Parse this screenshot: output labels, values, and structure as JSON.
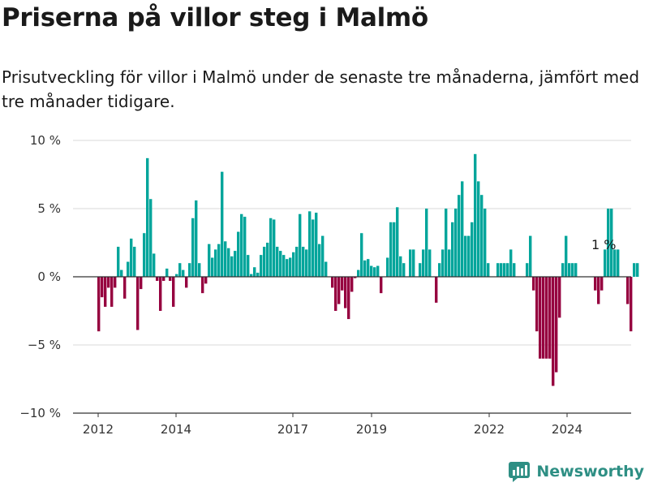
{
  "header": {
    "title": "Priserna på villor steg i Malmö",
    "subtitle": "Prisutveckling för villor i Malmö under de senaste tre månaderna, jämfört med tre månader tidigare."
  },
  "brand": {
    "name": "Newsworthy",
    "icon": "newsworthy-logo-icon"
  },
  "colors": {
    "positive": "#00a59b",
    "negative": "#96003f",
    "grid": "#d9d9d9",
    "zero_line": "#333333"
  },
  "chart_data": {
    "type": "bar",
    "x_unit": "month",
    "ylim": [
      -10,
      10
    ],
    "yticks": [
      10,
      5,
      0,
      -5,
      -10
    ],
    "ytick_labels": [
      "10 %",
      "5 %",
      "0 %",
      "−5 %",
      "−10 %"
    ],
    "xtick_labels": [
      "2012",
      "2014",
      "2017",
      "2019",
      "2022",
      "2024"
    ],
    "grid": true,
    "annotation": {
      "text": "1 %"
    },
    "series": [
      {
        "values": [
          -4,
          -1.5,
          -2.2,
          -0.8,
          -2.2,
          -0.8,
          2.2,
          0.5,
          -1.6,
          1.1,
          2.8,
          2.2,
          -3.9,
          -0.9,
          3.2,
          8.7,
          5.7,
          1.7,
          -0.3,
          -2.5,
          -0.3,
          0.6,
          -0.3,
          -2.2,
          0.2,
          1.0,
          0.5,
          -0.8,
          1.0,
          4.3,
          5.6,
          1.0,
          -1.2,
          -0.5,
          2.4,
          1.4,
          2.0,
          2.4,
          7.7,
          2.6,
          2.1,
          1.5,
          1.9,
          3.3,
          4.6,
          4.4,
          1.6,
          0.2,
          0.7,
          0.3,
          1.6,
          2.2,
          2.5,
          4.3,
          4.2,
          2.2,
          1.9,
          1.6,
          1.3,
          1.4,
          1.8,
          2.2,
          4.6,
          2.2,
          2.0,
          4.8,
          4.2,
          4.7,
          2.4,
          3.0,
          1.1,
          0.0,
          -0.8,
          -2.5,
          -2.0,
          -1.0,
          -2.3,
          -3.1,
          -1.1,
          -0.1,
          0.5,
          3.2,
          1.2,
          1.3,
          0.8,
          0.7,
          0.8,
          -1.2,
          0.0,
          1.4,
          4.0,
          4.0,
          5.1,
          1.5,
          1.0,
          0.0,
          2.0,
          2.0,
          0.0,
          1.0,
          2.0,
          5.0,
          2.0,
          0.0,
          -1.9,
          1.0,
          2.0,
          5.0,
          2.0,
          4.0,
          5.0,
          6.0,
          7.0,
          3.0,
          3.0,
          4.0,
          9.0,
          7.0,
          6.0,
          5.0,
          1.0,
          0.0,
          0.0,
          1.0,
          1.0,
          1.0,
          1.0,
          2.0,
          1.0,
          0.0,
          0.0,
          0.0,
          1.0,
          3.0,
          -1.0,
          -4.0,
          -6.0,
          -6.0,
          -6.0,
          -6.0,
          -8.0,
          -7.0,
          -3.0,
          1.0,
          3.0,
          1.0,
          1.0,
          1.0,
          0.0,
          0.0,
          0.0,
          0.0,
          0.0,
          -1.0,
          -2.0,
          -1.0,
          2.0,
          5.0,
          5.0,
          2.0,
          2.0,
          0.0,
          0.0,
          -2.0,
          -4.0,
          1.0,
          1.0
        ]
      }
    ]
  }
}
